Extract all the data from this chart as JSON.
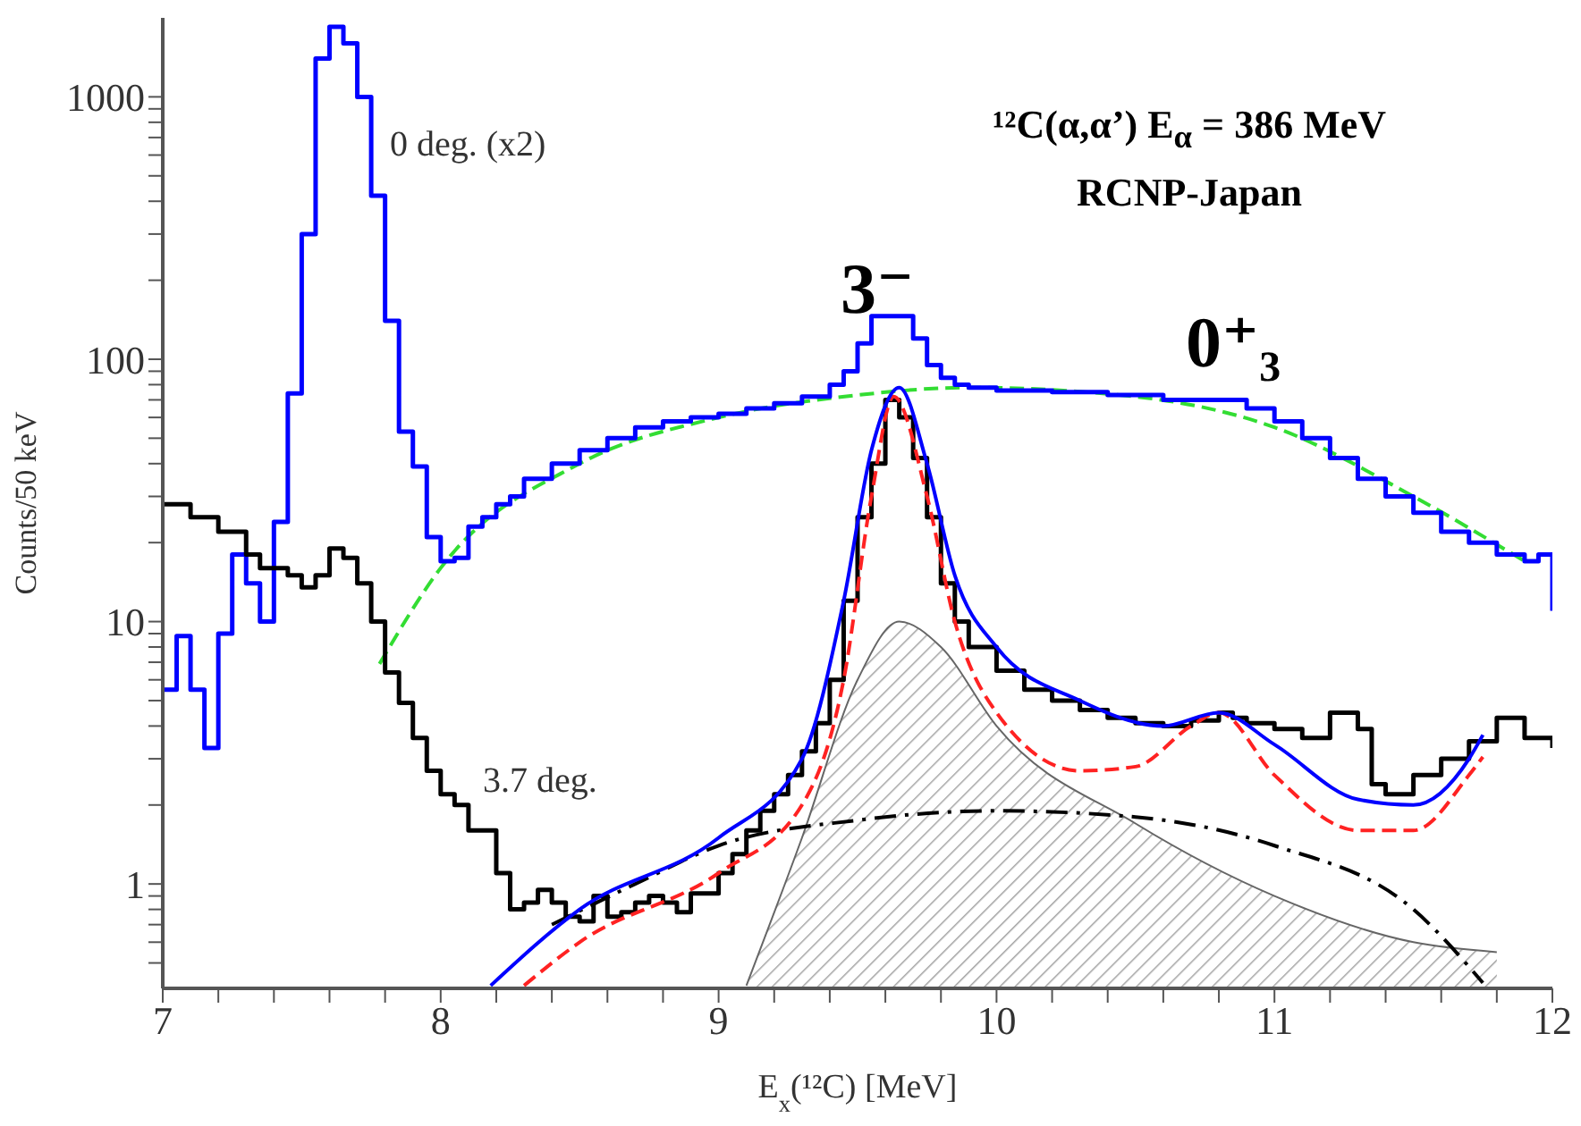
{
  "chart_data": {
    "type": "step",
    "title": "¹²C(α,α’) E$_{α}$ = 386 MeV",
    "subtitle": "RCNP-Japan",
    "xlabel": "E$_{x}$(¹²C)  [MeV]",
    "ylabel": "Counts/50 keV",
    "xlim": [
      7,
      12
    ],
    "xticks": [
      7,
      {
        "value": 7.2,
        "label": null
      },
      {
        "value": 7.4,
        "label": null
      },
      {
        "value": 7.6,
        "label": null
      },
      {
        "value": 7.8,
        "label": null
      },
      8,
      {
        "value": 8.2,
        "label": null
      },
      {
        "value": 8.4,
        "label": null
      },
      {
        "value": 8.6,
        "label": null
      },
      {
        "value": 8.8,
        "label": null
      },
      9,
      {
        "value": 9.2,
        "label": null
      },
      {
        "value": 9.4,
        "label": null
      },
      {
        "value": 9.6,
        "label": null
      },
      {
        "value": 9.8,
        "label": null
      },
      10,
      {
        "value": 10.2,
        "label": null
      },
      {
        "value": 10.4,
        "label": null
      },
      {
        "value": 10.6,
        "label": null
      },
      {
        "value": 10.8,
        "label": null
      },
      11,
      {
        "value": 11.2,
        "label": null
      },
      {
        "value": 11.4,
        "label": null
      },
      {
        "value": 11.6,
        "label": null
      },
      {
        "value": 11.8,
        "label": null
      },
      12
    ],
    "ylim": [
      0.4,
      2000
    ],
    "yticks": [
      {
        "value": 0.5,
        "label": null
      },
      {
        "value": 0.6,
        "label": null
      },
      {
        "value": 0.7,
        "label": null
      },
      {
        "value": 0.8,
        "label": null
      },
      {
        "value": 0.9,
        "label": null
      },
      1,
      {
        "value": 2,
        "label": null
      },
      {
        "value": 3,
        "label": null
      },
      {
        "value": 4,
        "label": null
      },
      {
        "value": 5,
        "label": null
      },
      {
        "value": 6,
        "label": null
      },
      {
        "value": 7,
        "label": null
      },
      {
        "value": 8,
        "label": null
      },
      {
        "value": 9,
        "label": null
      },
      10,
      {
        "value": 20,
        "label": null
      },
      {
        "value": 30,
        "label": null
      },
      {
        "value": 40,
        "label": null
      },
      {
        "value": 50,
        "label": null
      },
      {
        "value": 60,
        "label": null
      },
      {
        "value": 70,
        "label": null
      },
      {
        "value": 80,
        "label": null
      },
      {
        "value": 90,
        "label": null
      },
      100,
      {
        "value": 200,
        "label": null
      },
      {
        "value": 300,
        "label": null
      },
      {
        "value": 400,
        "label": null
      },
      {
        "value": 500,
        "label": null
      },
      {
        "value": 600,
        "label": null
      },
      {
        "value": 700,
        "label": null
      },
      {
        "value": 800,
        "label": null
      },
      {
        "value": 900,
        "label": null
      },
      1000
    ],
    "log": "y",
    "grid": false,
    "legend": false,
    "marker": "none",
    "series": [
      {
        "type": "area",
        "color": "#666666",
        "x": [
          9.1,
          9.3,
          9.5,
          9.65,
          9.8,
          10.0,
          10.5,
          11.0,
          11.5,
          11.8
        ],
        "values": [
          0.41,
          1.5,
          6,
          10,
          8,
          4,
          1.7,
          0.9,
          0.6,
          0.55
        ]
      },
      {
        "type": "line",
        "line_style": "dashed",
        "color": "#33dd33",
        "x": [
          7.78,
          8.0,
          8.5,
          9.0,
          9.5,
          9.9,
          10.5,
          11.0,
          11.5,
          11.9
        ],
        "values": [
          6.9,
          16,
          40,
          60,
          73,
          78,
          72,
          55,
          30,
          17
        ]
      },
      {
        "color": "#0000ff",
        "x": [
          7.0,
          7.05,
          7.1,
          7.15,
          7.2,
          7.25,
          7.3,
          7.35,
          7.4,
          7.45,
          7.5,
          7.55,
          7.6,
          7.65,
          7.7,
          7.75,
          7.8,
          7.85,
          7.9,
          7.95,
          8.0,
          8.05,
          8.1,
          8.15,
          8.2,
          8.25,
          8.3,
          8.4,
          8.5,
          8.6,
          8.7,
          8.8,
          8.9,
          9.0,
          9.1,
          9.2,
          9.3,
          9.4,
          9.45,
          9.5,
          9.55,
          9.65,
          9.7,
          9.75,
          9.8,
          9.85,
          9.9,
          10.0,
          10.2,
          10.4,
          10.6,
          10.8,
          10.9,
          11.0,
          11.1,
          11.2,
          11.3,
          11.4,
          11.5,
          11.6,
          11.7,
          11.8,
          11.9,
          11.95,
          12.0
        ],
        "values": [
          5.5,
          8.8,
          5.5,
          3.3,
          9,
          18,
          14,
          10,
          24,
          74,
          300,
          1400,
          1850,
          1600,
          1000,
          420,
          140,
          53,
          39,
          21,
          17,
          17.5,
          23,
          25,
          28,
          30,
          35,
          40,
          45,
          50,
          55,
          58,
          60,
          62,
          65,
          68,
          72,
          80,
          90,
          115,
          146,
          146,
          120,
          95,
          85,
          80,
          78,
          76,
          75,
          73,
          70,
          70,
          65,
          58,
          50,
          42,
          35,
          30,
          26,
          22,
          20,
          18,
          17,
          18,
          11
        ]
      },
      {
        "color": "#000000",
        "x": [
          7.0,
          7.1,
          7.2,
          7.3,
          7.35,
          7.45,
          7.5,
          7.55,
          7.6,
          7.65,
          7.7,
          7.75,
          7.8,
          7.85,
          7.9,
          7.95,
          8.0,
          8.05,
          8.1,
          8.15,
          8.2,
          8.25,
          8.3,
          8.35,
          8.4,
          8.45,
          8.5,
          8.55,
          8.6,
          8.65,
          8.7,
          8.75,
          8.8,
          8.85,
          8.9,
          9.0,
          9.05,
          9.1,
          9.15,
          9.2,
          9.25,
          9.3,
          9.35,
          9.4,
          9.45,
          9.5,
          9.55,
          9.6,
          9.65,
          9.7,
          9.75,
          9.8,
          9.85,
          9.9,
          10.0,
          10.1,
          10.2,
          10.3,
          10.4,
          10.5,
          10.6,
          10.7,
          10.8,
          10.85,
          10.9,
          11.0,
          11.1,
          11.2,
          11.3,
          11.35,
          11.4,
          11.5,
          11.6,
          11.7,
          11.8,
          11.9,
          12.0
        ],
        "values": [
          28,
          25,
          22,
          18,
          16,
          15,
          13.5,
          15,
          19,
          17.5,
          14,
          10,
          6.4,
          4.9,
          3.6,
          2.7,
          2.2,
          2.0,
          1.6,
          1.6,
          1.1,
          0.8,
          0.85,
          0.95,
          0.85,
          0.75,
          0.72,
          0.9,
          0.75,
          0.78,
          0.85,
          0.9,
          0.85,
          0.78,
          0.92,
          1.1,
          1.3,
          1.6,
          1.9,
          2.2,
          2.6,
          3.2,
          4.1,
          6,
          12,
          25,
          40,
          70,
          60,
          42,
          25,
          14,
          10,
          8,
          6.5,
          5.5,
          5,
          4.6,
          4.3,
          4.1,
          4.0,
          4.2,
          4.5,
          4.3,
          4.1,
          3.9,
          3.6,
          4.5,
          3.9,
          2.4,
          2.2,
          2.6,
          3.0,
          3.5,
          4.3,
          3.6,
          3.3
        ]
      },
      {
        "type": "line",
        "line_style": "dashdot",
        "color": "#000000",
        "x": [
          8.4,
          8.7,
          9.0,
          9.5,
          10.0,
          10.5,
          11.0,
          11.5,
          11.75
        ],
        "values": [
          0.7,
          1.0,
          1.4,
          1.75,
          1.9,
          1.8,
          1.4,
          0.8,
          0.42
        ]
      },
      {
        "type": "line",
        "line_style": "dashed",
        "color": "#ff2222",
        "x": [
          8.3,
          8.5,
          9.0,
          9.3,
          9.45,
          9.55,
          9.63,
          9.75,
          9.85,
          10.0,
          10.3,
          10.5,
          10.7,
          10.8,
          11.0,
          11.3,
          11.5,
          11.7,
          11.75
        ],
        "values": [
          0.41,
          0.6,
          1.1,
          2,
          6,
          30,
          72,
          30,
          10,
          4.5,
          2.7,
          2.8,
          4,
          4.5,
          2.6,
          1.6,
          1.6,
          2.6,
          3.05
        ]
      },
      {
        "type": "line",
        "color": "#0000ff",
        "x": [
          8.18,
          8.5,
          9.0,
          9.3,
          9.45,
          9.55,
          9.65,
          9.75,
          9.85,
          10.0,
          10.3,
          10.6,
          10.8,
          11.0,
          11.3,
          11.5,
          11.7,
          11.75
        ],
        "values": [
          0.41,
          0.8,
          1.5,
          3,
          12,
          45,
          78,
          40,
          15,
          8,
          5,
          4,
          4.5,
          3.4,
          2.1,
          2.0,
          3.0,
          3.7
        ]
      }
    ],
    "annotations": [
      "0 deg. (x2)",
      "3.7 deg.",
      "3⁻",
      "0⁺₃"
    ]
  }
}
